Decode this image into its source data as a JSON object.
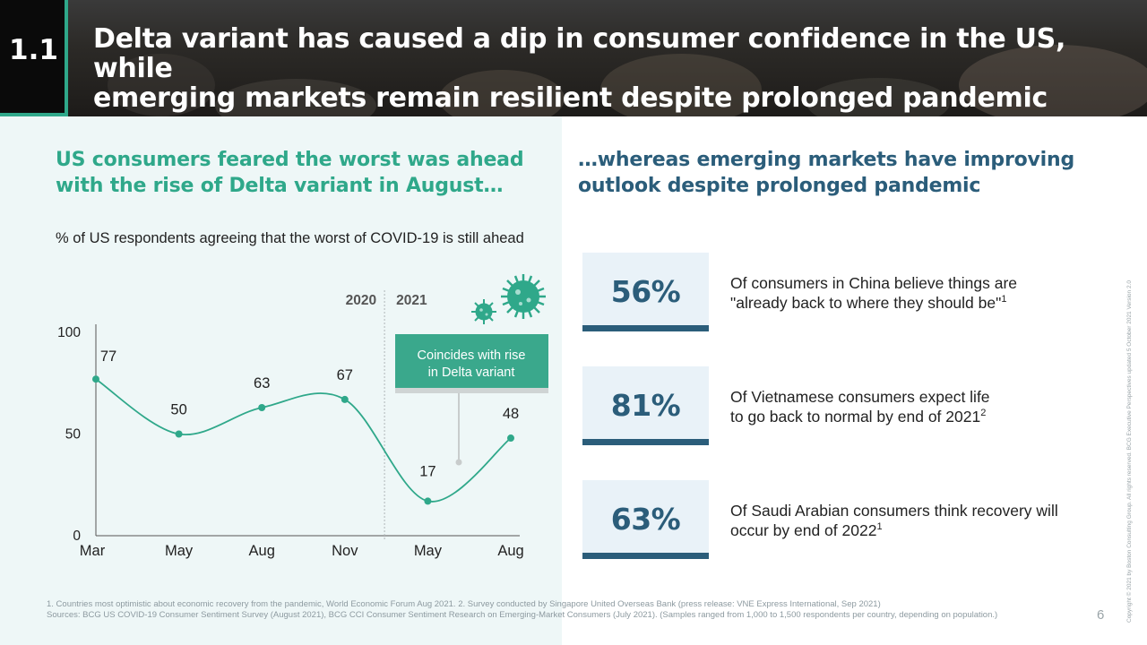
{
  "header": {
    "section_number": "1.1",
    "title_line1": "Delta variant has caused a dip in consumer confidence in the US, while",
    "title_line2": "emerging markets remain resilient despite prolonged pandemic"
  },
  "left": {
    "heading": "US consumers feared the worst was ahead with the rise of Delta variant in August…",
    "chart_subtitle": "% of US respondents agreeing that the worst of COVID-19 is still ahead",
    "callout": "Coincides with rise in Delta variant"
  },
  "right": {
    "heading": "…whereas emerging markets have improving outlook despite prolonged pandemic",
    "stats": [
      {
        "value": "56%",
        "text": "Of consumers in China believe things are \"already back to where they should be\"",
        "note": "1"
      },
      {
        "value": "81%",
        "text": "Of Vietnamese consumers expect life to go back to normal by end of 2021",
        "note": "2"
      },
      {
        "value": "63%",
        "text": "Of Saudi Arabian consumers think recovery will occur by end of 2022",
        "note": "1"
      }
    ]
  },
  "chart_data": {
    "type": "line",
    "title": "% of US respondents agreeing that the worst of COVID-19 is still ahead",
    "categories": [
      "Mar",
      "May",
      "Aug",
      "Nov",
      "May",
      "Aug"
    ],
    "year_labels": [
      "2020",
      "2021"
    ],
    "values": [
      77,
      50,
      63,
      67,
      17,
      48
    ],
    "ylim": [
      0,
      100
    ],
    "yticks": [
      0,
      50,
      100
    ],
    "color": "#2fa88a"
  },
  "footer": {
    "note1": "1. Countries most optimistic about economic recovery from the pandemic, World Economic Forum Aug 2021. 2. Survey conducted by Singapore United Overseas Bank (press release: VNE Express International, Sep 2021)",
    "note2": "Sources: BCG US COVID-19 Consumer Sentiment Survey (August 2021), BCG CCI Consumer Sentiment Research on Emerging-Market Consumers (July 2021). (Samples ranged from 1,000 to 1,500 respondents per country, depending on population.)",
    "page": "6",
    "copyright": "Copyright © 2021 by Boston Consulting Group. All rights reserved. BCG Executive Perspectives updated 5 October 2021 Version 2.0"
  },
  "colors": {
    "teal": "#2fa88a",
    "navy": "#2b5d7a"
  }
}
